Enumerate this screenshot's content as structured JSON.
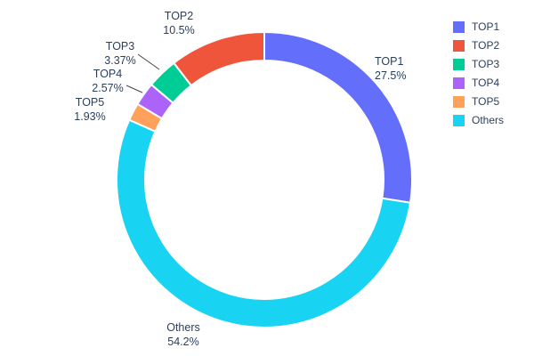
{
  "chart_data": {
    "type": "pie",
    "subtype": "donut",
    "hole_ratio": 0.81,
    "title": "",
    "direction": "clockwise",
    "start_angle_deg": 0,
    "clockwise_order_from_top": [
      "TOP1",
      "Others",
      "TOP5",
      "TOP4",
      "TOP3",
      "TOP2"
    ],
    "slices": [
      {
        "label": "TOP1",
        "value": 27.5,
        "pct_label": "27.5%",
        "color": "#636EFA"
      },
      {
        "label": "TOP2",
        "value": 10.5,
        "pct_label": "10.5%",
        "color": "#EF553B"
      },
      {
        "label": "TOP3",
        "value": 3.37,
        "pct_label": "3.37%",
        "color": "#00CC96"
      },
      {
        "label": "TOP4",
        "value": 2.57,
        "pct_label": "2.57%",
        "color": "#AB63FA"
      },
      {
        "label": "TOP5",
        "value": 1.93,
        "pct_label": "1.93%",
        "color": "#FFA15A"
      },
      {
        "label": "Others",
        "value": 54.2,
        "pct_label": "54.2%",
        "color": "#19D3F3"
      }
    ],
    "legend_position": "right",
    "label_text_color": "#2a3f5f",
    "leader_line_color": "#444444",
    "slice_border_color": "#ffffff",
    "background_color": "#ffffff"
  }
}
